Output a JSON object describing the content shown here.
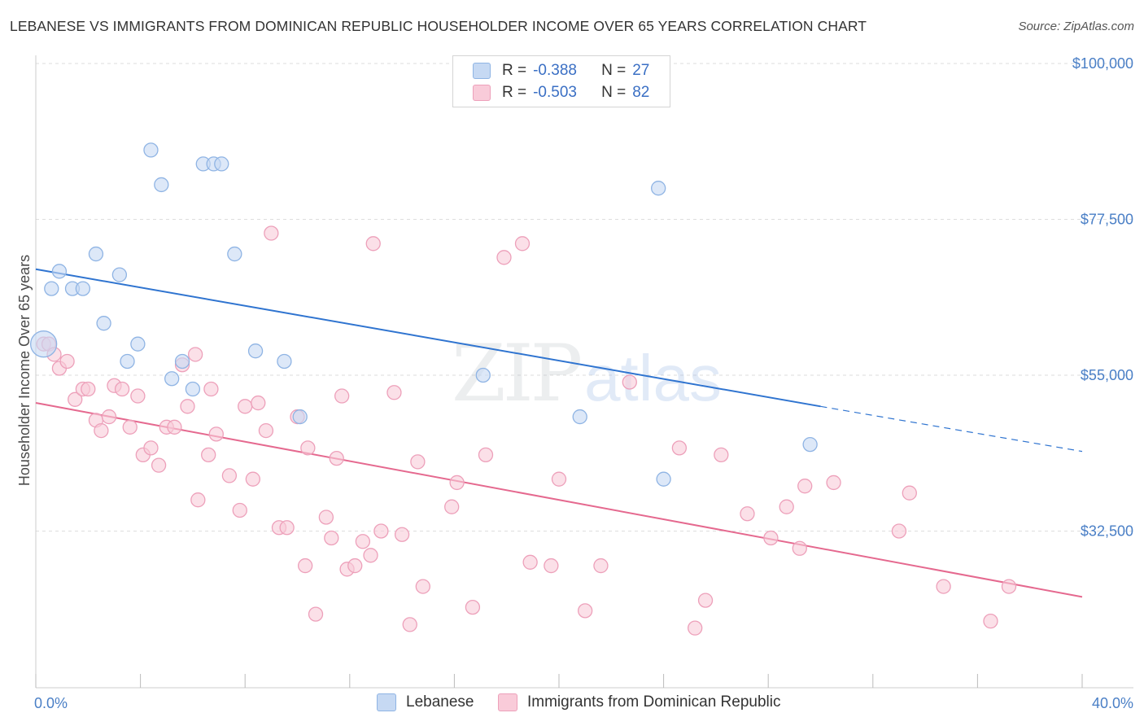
{
  "title": "LEBANESE VS IMMIGRANTS FROM DOMINICAN REPUBLIC HOUSEHOLDER INCOME OVER 65 YEARS CORRELATION CHART",
  "source": "Source: ZipAtlas.com",
  "watermark": {
    "zip": "ZIP",
    "atlas": "atlas"
  },
  "legend": {
    "r_label": "R =",
    "n_label": "N =",
    "rows": [
      {
        "r": "-0.388",
        "n": "27"
      },
      {
        "r": "-0.503",
        "n": "82"
      }
    ]
  },
  "bottom_legend": [
    "Lebanese",
    "Immigrants from Dominican Republic"
  ],
  "colors": {
    "blue_fill": "#c6d9f3",
    "blue_stroke": "#8fb4e4",
    "blue_line": "#2f74d0",
    "pink_fill": "#f9cbd9",
    "pink_stroke": "#eda0ba",
    "pink_line": "#e5698f",
    "tick_text": "#4a7fc6"
  },
  "chart_data": {
    "type": "scatter",
    "ylabel": "Householder Income Over 65 years",
    "xlabel": "",
    "xlim": [
      0,
      40
    ],
    "ylim": [
      15000,
      102000
    ],
    "x_tick_labels": [
      {
        "value": 0,
        "label": "0.0%"
      },
      {
        "value": 40,
        "label": "40.0%"
      }
    ],
    "y_ticks": [
      {
        "value": 32500,
        "label": "$32,500"
      },
      {
        "value": 55000,
        "label": "$55,000"
      },
      {
        "value": 77500,
        "label": "$77,500"
      },
      {
        "value": 100000,
        "label": "$100,000"
      }
    ],
    "grid": true,
    "series": [
      {
        "name": "Lebanese",
        "color": "blue",
        "points": [
          [
            0.3,
            59500
          ],
          [
            0.6,
            67500
          ],
          [
            0.9,
            70000
          ],
          [
            1.4,
            67500
          ],
          [
            1.8,
            67500
          ],
          [
            2.3,
            72500
          ],
          [
            2.6,
            62500
          ],
          [
            3.2,
            69500
          ],
          [
            3.5,
            57000
          ],
          [
            3.9,
            59500
          ],
          [
            4.4,
            87500
          ],
          [
            4.8,
            82500
          ],
          [
            5.2,
            54500
          ],
          [
            5.6,
            57000
          ],
          [
            6.0,
            53000
          ],
          [
            6.4,
            85500
          ],
          [
            6.8,
            85500
          ],
          [
            7.1,
            85500
          ],
          [
            7.6,
            72500
          ],
          [
            8.4,
            58500
          ],
          [
            9.5,
            57000
          ],
          [
            10.1,
            49000
          ],
          [
            17.1,
            55000
          ],
          [
            20.8,
            49000
          ],
          [
            23.8,
            82000
          ],
          [
            24.0,
            40000
          ],
          [
            29.6,
            45000
          ]
        ],
        "trend": {
          "x0": 0,
          "y0": 70300,
          "x1": 30,
          "y1": 50500,
          "dash_to_x": 40,
          "dash_to_y": 44000
        }
      },
      {
        "name": "Immigrants from Dominican Republic",
        "color": "pink",
        "points": [
          [
            0.3,
            59500
          ],
          [
            0.5,
            59500
          ],
          [
            0.7,
            58000
          ],
          [
            0.9,
            56000
          ],
          [
            1.2,
            57000
          ],
          [
            1.5,
            51500
          ],
          [
            1.8,
            53000
          ],
          [
            2.0,
            53000
          ],
          [
            2.3,
            48500
          ],
          [
            2.5,
            47000
          ],
          [
            2.8,
            49000
          ],
          [
            3.0,
            53500
          ],
          [
            3.3,
            53000
          ],
          [
            3.6,
            47500
          ],
          [
            3.9,
            52000
          ],
          [
            4.1,
            43500
          ],
          [
            4.4,
            44500
          ],
          [
            4.7,
            42000
          ],
          [
            5.0,
            47500
          ],
          [
            5.3,
            47500
          ],
          [
            5.6,
            56500
          ],
          [
            5.8,
            50500
          ],
          [
            6.1,
            58000
          ],
          [
            6.2,
            37000
          ],
          [
            6.6,
            43500
          ],
          [
            6.7,
            53000
          ],
          [
            6.9,
            46500
          ],
          [
            7.4,
            40500
          ],
          [
            7.8,
            35500
          ],
          [
            8.0,
            50500
          ],
          [
            8.3,
            40000
          ],
          [
            8.5,
            51000
          ],
          [
            8.8,
            47000
          ],
          [
            9.0,
            75500
          ],
          [
            9.3,
            33000
          ],
          [
            9.6,
            33000
          ],
          [
            10.0,
            49000
          ],
          [
            10.3,
            27500
          ],
          [
            10.4,
            44500
          ],
          [
            10.7,
            20500
          ],
          [
            11.1,
            34500
          ],
          [
            11.3,
            31500
          ],
          [
            11.5,
            43000
          ],
          [
            11.7,
            52000
          ],
          [
            11.9,
            27000
          ],
          [
            12.2,
            27500
          ],
          [
            12.5,
            31000
          ],
          [
            12.9,
            74000
          ],
          [
            12.8,
            29000
          ],
          [
            13.2,
            32500
          ],
          [
            13.7,
            52500
          ],
          [
            14.0,
            32000
          ],
          [
            14.3,
            19000
          ],
          [
            14.6,
            42500
          ],
          [
            14.8,
            24500
          ],
          [
            15.9,
            36000
          ],
          [
            16.1,
            39500
          ],
          [
            16.7,
            21500
          ],
          [
            17.2,
            43500
          ],
          [
            17.9,
            72000
          ],
          [
            18.6,
            74000
          ],
          [
            18.9,
            28000
          ],
          [
            19.7,
            27500
          ],
          [
            20.0,
            40000
          ],
          [
            21.0,
            21000
          ],
          [
            21.6,
            27500
          ],
          [
            22.7,
            54000
          ],
          [
            24.6,
            44500
          ],
          [
            25.2,
            18500
          ],
          [
            25.6,
            22500
          ],
          [
            26.2,
            43500
          ],
          [
            27.2,
            35000
          ],
          [
            28.1,
            31500
          ],
          [
            28.7,
            36000
          ],
          [
            29.4,
            39000
          ],
          [
            29.2,
            30000
          ],
          [
            30.5,
            39500
          ],
          [
            33.0,
            32500
          ],
          [
            33.4,
            38000
          ],
          [
            34.7,
            24500
          ],
          [
            36.5,
            19500
          ],
          [
            37.2,
            24500
          ]
        ],
        "trend": {
          "x0": 0,
          "y0": 51000,
          "x1": 40,
          "y1": 23000
        }
      }
    ]
  }
}
